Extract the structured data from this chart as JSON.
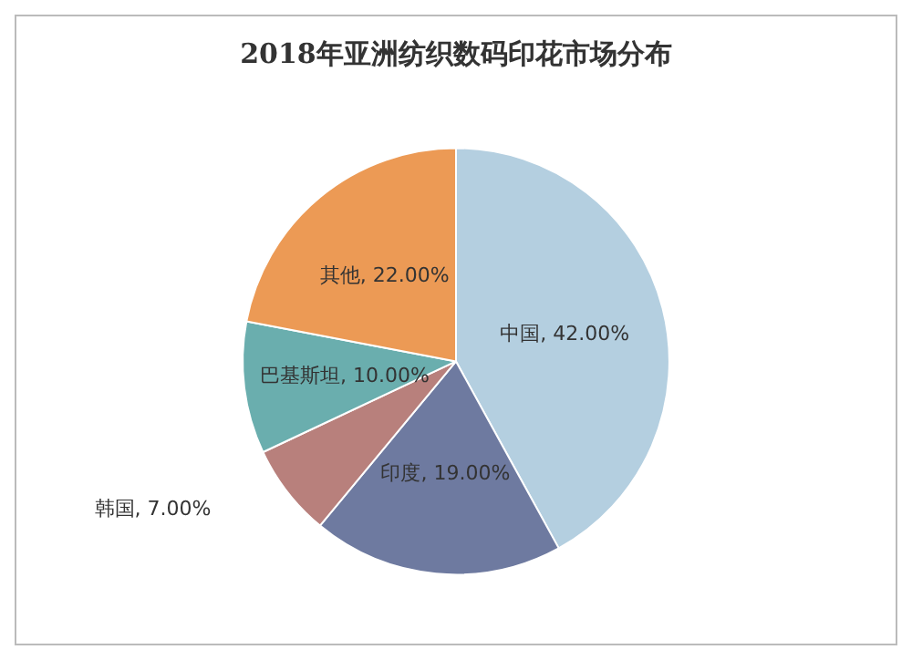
{
  "chart_data": {
    "type": "pie",
    "title": "2018年亚洲纺织数码印花市场分布",
    "categories": [
      "中国",
      "印度",
      "韩国",
      "巴基斯坦",
      "其他"
    ],
    "values": [
      42,
      19,
      7,
      10,
      22
    ],
    "value_labels": [
      "42.00%",
      "19.00%",
      "7.00%",
      "10.00%",
      "22.00%"
    ],
    "colors": [
      "#b4cfe0",
      "#6e7aa0",
      "#b8807c",
      "#6aaeae",
      "#ec9a55"
    ],
    "legend": false
  }
}
